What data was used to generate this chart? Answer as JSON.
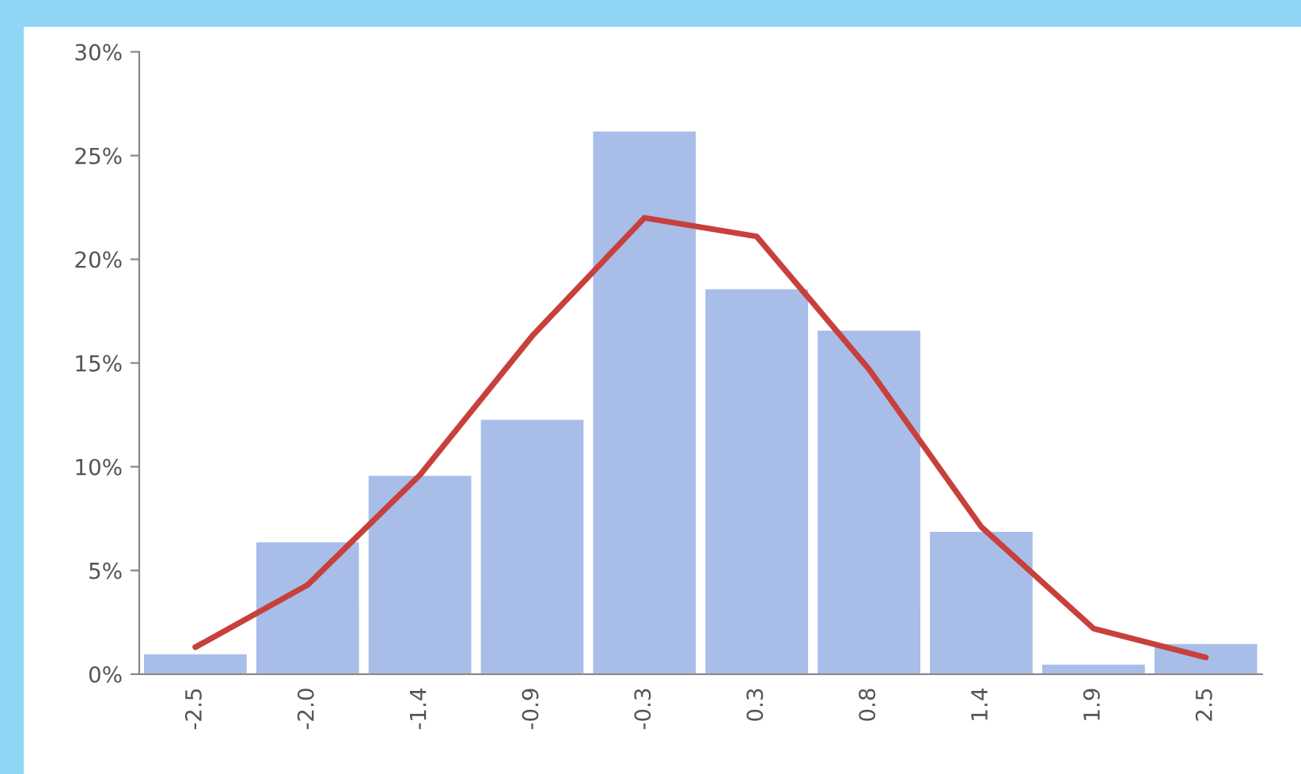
{
  "chart_data": {
    "type": "bar",
    "categories": [
      "-2.5",
      "-2.0",
      "-1.4",
      "-0.9",
      "-0.3",
      "0.3",
      "0.8",
      "1.4",
      "1.9",
      "2.5"
    ],
    "series": [
      {
        "color": "#a9bde9",
        "values": [
          1.0,
          6.4,
          9.6,
          12.3,
          26.2,
          18.6,
          16.6,
          6.9,
          0.5,
          1.5
        ]
      },
      {
        "type": "line",
        "color": "#c8403c",
        "values": [
          1.3,
          4.3,
          9.6,
          16.3,
          22.0,
          21.1,
          14.7,
          7.1,
          2.2,
          0.8
        ]
      }
    ],
    "ylim": [
      0,
      30
    ],
    "yticks": [
      {
        "value": 0,
        "label": "0%"
      },
      {
        "value": 5,
        "label": "5%"
      },
      {
        "value": 10,
        "label": "10%"
      },
      {
        "value": 15,
        "label": "15%"
      },
      {
        "value": 20,
        "label": "20%"
      },
      {
        "value": 25,
        "label": "25%"
      },
      {
        "value": 30,
        "label": "30%"
      }
    ],
    "grid": false,
    "legend": false,
    "marker": "none",
    "line_style": "solid"
  }
}
